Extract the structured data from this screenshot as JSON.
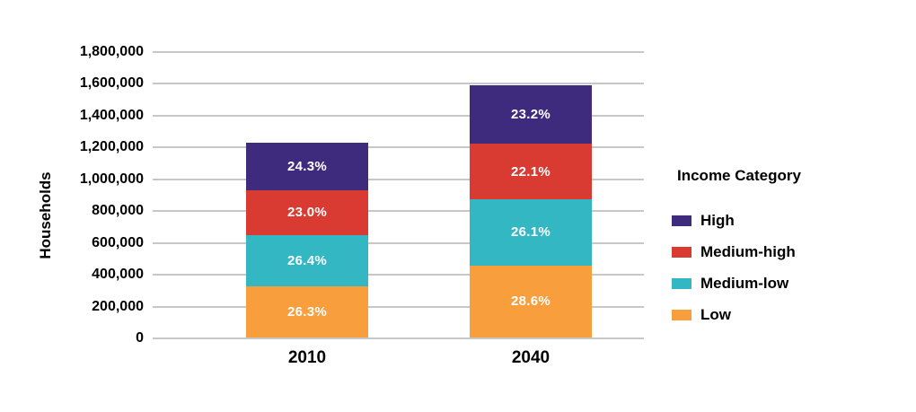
{
  "chart_data": {
    "type": "bar",
    "subtype": "stacked-vertical",
    "title": "",
    "ylabel": "Households",
    "xlabel": "",
    "categories": [
      "2010",
      "2040"
    ],
    "totals_estimated": [
      1225000,
      1586000
    ],
    "series": [
      {
        "name": "Low",
        "color": "#f89e3d",
        "percents": [
          26.3,
          28.6
        ],
        "labels": [
          "26.3%",
          "28.6%"
        ],
        "approx_values": [
          322000,
          454000
        ]
      },
      {
        "name": "Medium-low",
        "color": "#33b7c3",
        "percents": [
          26.4,
          26.1
        ],
        "labels": [
          "26.4%",
          "26.1%"
        ],
        "approx_values": [
          323000,
          414000
        ]
      },
      {
        "name": "Medium-high",
        "color": "#d93a32",
        "percents": [
          23.0,
          22.1
        ],
        "labels": [
          "23.0%",
          "22.1%"
        ],
        "approx_values": [
          282000,
          351000
        ]
      },
      {
        "name": "High",
        "color": "#3e2b7e",
        "percents": [
          24.3,
          23.2
        ],
        "labels": [
          "24.3%",
          "23.2%"
        ],
        "approx_values": [
          298000,
          368000
        ]
      }
    ],
    "stack_order_note": "series listed bottom-to-top",
    "ylim": [
      0,
      1800000
    ],
    "ytick_step": 200000,
    "yticks": [
      "0",
      "200,000",
      "400,000",
      "600,000",
      "800,000",
      "1,000,000",
      "1,200,000",
      "1,400,000",
      "1,600,000",
      "1,800,000"
    ],
    "grid": true,
    "grid_color": "#c7c7c7",
    "legend": {
      "title": "Income Category",
      "position": "right",
      "items": [
        {
          "label": "High",
          "color": "#3e2b7e"
        },
        {
          "label": "Medium-high",
          "color": "#d93a32"
        },
        {
          "label": "Medium-low",
          "color": "#33b7c3"
        },
        {
          "label": "Low",
          "color": "#f89e3d"
        }
      ]
    }
  }
}
